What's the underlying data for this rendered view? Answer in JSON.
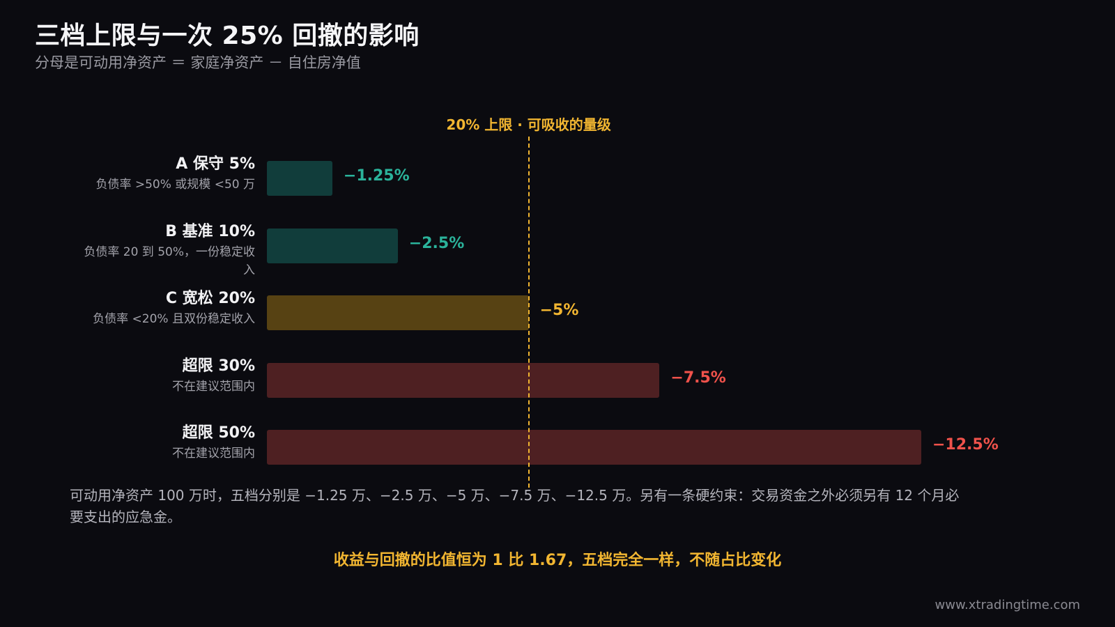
{
  "title": "三档上限与一次 25% 回撤的影响",
  "subtitle": "分母是可动用净资产 ＝ 家庭净资产 － 自住房净值",
  "note": "可动用净资产 100 万时，五档分别是 −1.25 万、−2.5 万、−5 万、−7.5 万、−12.5 万。另有一条硬约束：交易资金之外必须另有 12 个月必要支出的应急金。",
  "highlight": "收益与回撤的比值恒为 1 比 1.67，五档完全一样，不随占比变化",
  "footer": "www.xtradingtime.com",
  "chart_data": {
    "type": "bar",
    "orientation": "horizontal",
    "title": "",
    "xlabel": "",
    "ylabel": "",
    "xlim": [
      0,
      12.5
    ],
    "grid": false,
    "reference_line": {
      "value": 5,
      "label": "20% 上限 · 可吸收的量级",
      "color": "#f2b631"
    },
    "categories": [
      {
        "name": "A 保守 5%",
        "desc": "负债率 >50% 或规模 <50 万"
      },
      {
        "name": "B 基准 10%",
        "desc": "负债率 20 到 50%，一份稳定收入"
      },
      {
        "name": "C 宽松 20%",
        "desc": "负债率 <20% 且双份稳定收入"
      },
      {
        "name": "超限 30%",
        "desc": "不在建议范围内"
      },
      {
        "name": "超限 50%",
        "desc": "不在建议范围内"
      }
    ],
    "values": [
      1.25,
      2.5,
      5,
      7.5,
      12.5
    ],
    "value_labels": [
      "−1.25%",
      "−2.5%",
      "−5%",
      "−7.5%",
      "−12.5%"
    ],
    "bar_colors": [
      "#113d3b",
      "#113d3b",
      "#574213",
      "#4e2022",
      "#4e2022"
    ],
    "label_colors": [
      "#2bb39b",
      "#2bb39b",
      "#f2b631",
      "#f0524b",
      "#f0524b"
    ]
  }
}
